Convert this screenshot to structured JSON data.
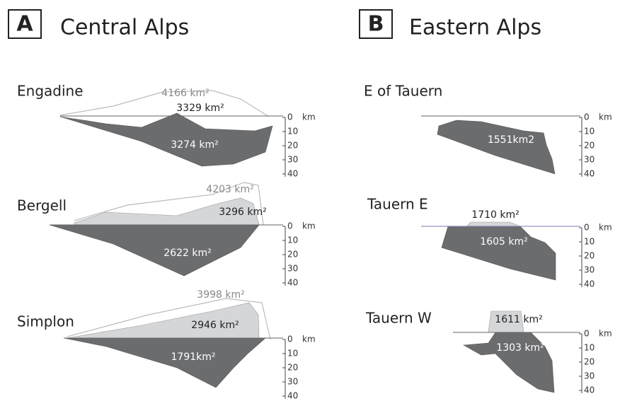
{
  "panels": [
    {
      "letter": "A",
      "title": "Central Alps",
      "sections": [
        {
          "name": "Engadine",
          "areas": [
            "4166 km²",
            "3329 km²",
            "3274 km²"
          ]
        },
        {
          "name": "Bergell",
          "areas": [
            "4203 km²",
            "3296 km²",
            "2622 km²"
          ]
        },
        {
          "name": "Simplon",
          "areas": [
            "3998 km²",
            "2946 km²",
            "1791km²"
          ]
        }
      ]
    },
    {
      "letter": "B",
      "title": "Eastern Alps",
      "sections": [
        {
          "name": "E of Tauern",
          "areas": [
            "1551km2"
          ]
        },
        {
          "name": "Tauern E",
          "areas": [
            "1710 km²",
            "1605 km²"
          ]
        },
        {
          "name": "Tauern W",
          "areas": [
            "1611 km²",
            "1303 km²"
          ]
        }
      ]
    }
  ],
  "depth_scale": {
    "ticks": [
      "0",
      "10",
      "20",
      "30",
      "40"
    ],
    "unit": "km"
  }
}
